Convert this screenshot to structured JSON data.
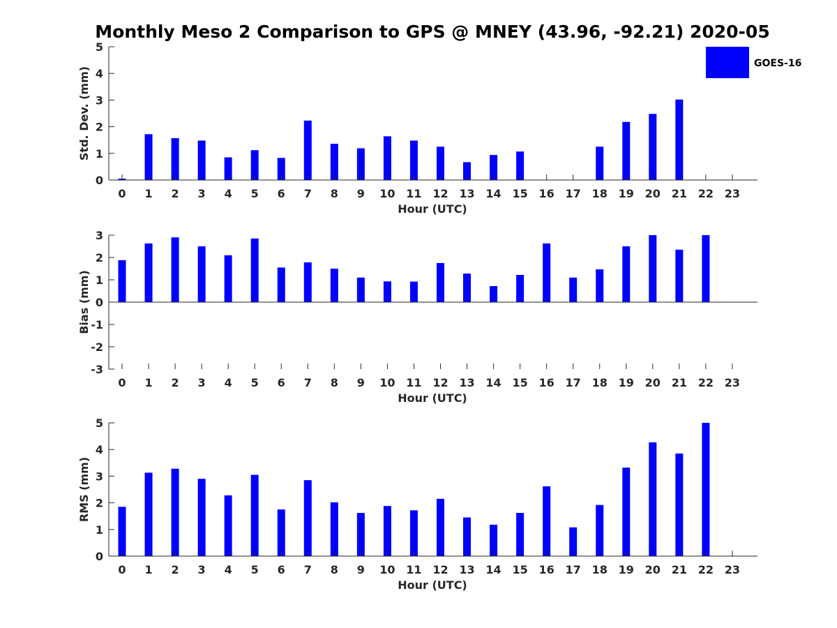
{
  "chart_data": {
    "type": "bar",
    "title": "Monthly Meso 2 Comparison to GPS @ MNEY (43.96, -92.21) 2020-05",
    "series_name": "GOES-16",
    "series_color": "#0000ff",
    "categories": [
      "0",
      "1",
      "2",
      "3",
      "4",
      "5",
      "6",
      "7",
      "8",
      "9",
      "10",
      "11",
      "12",
      "13",
      "14",
      "15",
      "16",
      "17",
      "18",
      "19",
      "20",
      "21",
      "22",
      "23"
    ],
    "panels": [
      {
        "name": "std-dev",
        "ylabel": "Std. Dev. (mm)",
        "xlabel": "Hour (UTC)",
        "ylim": [
          0,
          5
        ],
        "yticks": [
          0,
          1,
          2,
          3,
          4,
          5
        ],
        "values": [
          0.05,
          1.72,
          1.57,
          1.48,
          0.85,
          1.12,
          0.83,
          2.23,
          1.36,
          1.19,
          1.64,
          1.48,
          1.25,
          0.67,
          0.94,
          1.07,
          0,
          0,
          1.25,
          2.18,
          2.48,
          3.02,
          0,
          0
        ]
      },
      {
        "name": "bias",
        "ylabel": "Bias (mm)",
        "xlabel": "Hour (UTC)",
        "ylim": [
          -3,
          3
        ],
        "yticks": [
          -3,
          -2,
          -1,
          0,
          1,
          2,
          3
        ],
        "values": [
          1.88,
          2.63,
          2.9,
          2.5,
          2.1,
          2.85,
          1.55,
          1.78,
          1.5,
          1.1,
          0.93,
          0.92,
          1.75,
          1.28,
          0.72,
          1.22,
          2.63,
          1.1,
          1.47,
          2.5,
          3.0,
          2.35,
          3.0,
          0
        ]
      },
      {
        "name": "rms",
        "ylabel": "RMS (mm)",
        "xlabel": "Hour (UTC)",
        "ylim": [
          0,
          5
        ],
        "yticks": [
          0,
          1,
          2,
          3,
          4,
          5
        ],
        "values": [
          1.85,
          3.13,
          3.28,
          2.9,
          2.28,
          3.05,
          1.75,
          2.85,
          2.02,
          1.62,
          1.88,
          1.72,
          2.15,
          1.45,
          1.18,
          1.62,
          2.62,
          1.08,
          1.92,
          3.32,
          4.27,
          3.85,
          5.0,
          0
        ]
      }
    ]
  }
}
